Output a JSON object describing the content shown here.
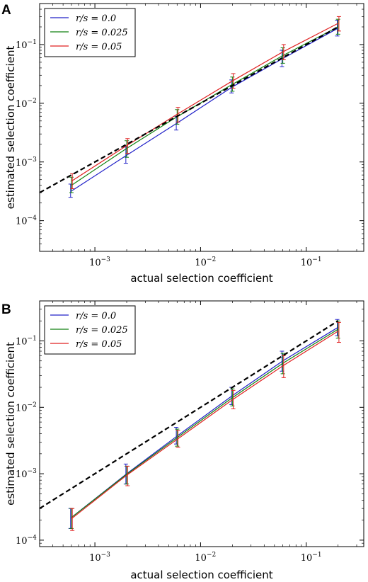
{
  "chart_data": [
    {
      "panel_label": "A",
      "type": "line",
      "xlabel": "actual selection coefficient",
      "ylabel": "estimated selection coefficient",
      "xscale": "log",
      "yscale": "log",
      "xlim": [
        0.0003,
        0.35
      ],
      "ylim": [
        3e-05,
        0.5
      ],
      "x_ticks": [
        {
          "value": 0.001,
          "base": "10",
          "exp": "−3"
        },
        {
          "value": 0.01,
          "base": "10",
          "exp": "−2"
        },
        {
          "value": 0.1,
          "base": "10",
          "exp": "−1"
        }
      ],
      "y_ticks": [
        {
          "value": 0.0001,
          "base": "10",
          "exp": "−4"
        },
        {
          "value": 0.001,
          "base": "10",
          "exp": "−3"
        },
        {
          "value": 0.01,
          "base": "10",
          "exp": "−2"
        },
        {
          "value": 0.1,
          "base": "10",
          "exp": "−1"
        }
      ],
      "x": [
        0.0006,
        0.002,
        0.006,
        0.02,
        0.06,
        0.2
      ],
      "legend_position": "top-left",
      "reference_line": {
        "style": "dashed",
        "color": "#000000",
        "x": [
          0.0003,
          0.2
        ],
        "y": [
          0.0003,
          0.2
        ]
      },
      "series": [
        {
          "name": "r/s = 0.0",
          "color": "#2020c8",
          "values": [
            0.00032,
            0.0013,
            0.0046,
            0.019,
            0.058,
            0.19
          ],
          "err_low": [
            0.00025,
            0.00095,
            0.0035,
            0.015,
            0.042,
            0.14
          ],
          "err_high": [
            0.00042,
            0.0018,
            0.006,
            0.025,
            0.08,
            0.26
          ]
        },
        {
          "name": "r/s = 0.025",
          "color": "#108010",
          "values": [
            0.0004,
            0.0017,
            0.0059,
            0.021,
            0.065,
            0.2
          ],
          "err_low": [
            0.0003,
            0.0012,
            0.0044,
            0.016,
            0.048,
            0.15
          ],
          "err_high": [
            0.00055,
            0.0023,
            0.0078,
            0.028,
            0.088,
            0.27
          ]
        },
        {
          "name": "r/s = 0.05",
          "color": "#e02020",
          "values": [
            0.00047,
            0.0019,
            0.0065,
            0.024,
            0.075,
            0.23
          ],
          "err_low": [
            0.00035,
            0.0014,
            0.0048,
            0.018,
            0.055,
            0.17
          ],
          "err_high": [
            0.00063,
            0.0025,
            0.0085,
            0.032,
            0.1,
            0.3
          ]
        }
      ]
    },
    {
      "panel_label": "B",
      "type": "line",
      "xlabel": "actual selection coefficient",
      "ylabel": "estimated selection coefficient",
      "xscale": "log",
      "yscale": "log",
      "xlim": [
        0.0003,
        0.35
      ],
      "ylim": [
        8e-05,
        0.4
      ],
      "x_ticks": [
        {
          "value": 0.001,
          "base": "10",
          "exp": "−3"
        },
        {
          "value": 0.01,
          "base": "10",
          "exp": "−2"
        },
        {
          "value": 0.1,
          "base": "10",
          "exp": "−1"
        }
      ],
      "y_ticks": [
        {
          "value": 0.0001,
          "base": "10",
          "exp": "−4"
        },
        {
          "value": 0.001,
          "base": "10",
          "exp": "−3"
        },
        {
          "value": 0.01,
          "base": "10",
          "exp": "−2"
        },
        {
          "value": 0.1,
          "base": "10",
          "exp": "−1"
        }
      ],
      "x": [
        0.0006,
        0.002,
        0.006,
        0.02,
        0.06,
        0.2
      ],
      "legend_position": "top-left",
      "reference_line": {
        "style": "dashed",
        "color": "#000000",
        "x": [
          0.0003,
          0.2
        ],
        "y": [
          0.0003,
          0.2
        ]
      },
      "series": [
        {
          "name": "r/s = 0.0",
          "color": "#2020c8",
          "values": [
            0.00022,
            0.001,
            0.0037,
            0.015,
            0.05,
            0.16
          ],
          "err_low": [
            0.00015,
            0.0007,
            0.0028,
            0.011,
            0.035,
            0.12
          ],
          "err_high": [
            0.0003,
            0.0014,
            0.005,
            0.02,
            0.07,
            0.21
          ]
        },
        {
          "name": "r/s = 0.025",
          "color": "#108010",
          "values": [
            0.00022,
            0.00098,
            0.0035,
            0.014,
            0.046,
            0.15
          ],
          "err_low": [
            0.00015,
            0.0007,
            0.0026,
            0.0105,
            0.032,
            0.11
          ],
          "err_high": [
            0.0003,
            0.0013,
            0.0047,
            0.019,
            0.065,
            0.2
          ]
        },
        {
          "name": "r/s = 0.05",
          "color": "#e02020",
          "values": [
            0.00021,
            0.00095,
            0.0033,
            0.013,
            0.042,
            0.14
          ],
          "err_low": [
            0.00014,
            0.00066,
            0.0025,
            0.0095,
            0.028,
            0.095
          ],
          "err_high": [
            0.0003,
            0.0013,
            0.0045,
            0.018,
            0.06,
            0.19
          ]
        }
      ]
    }
  ]
}
